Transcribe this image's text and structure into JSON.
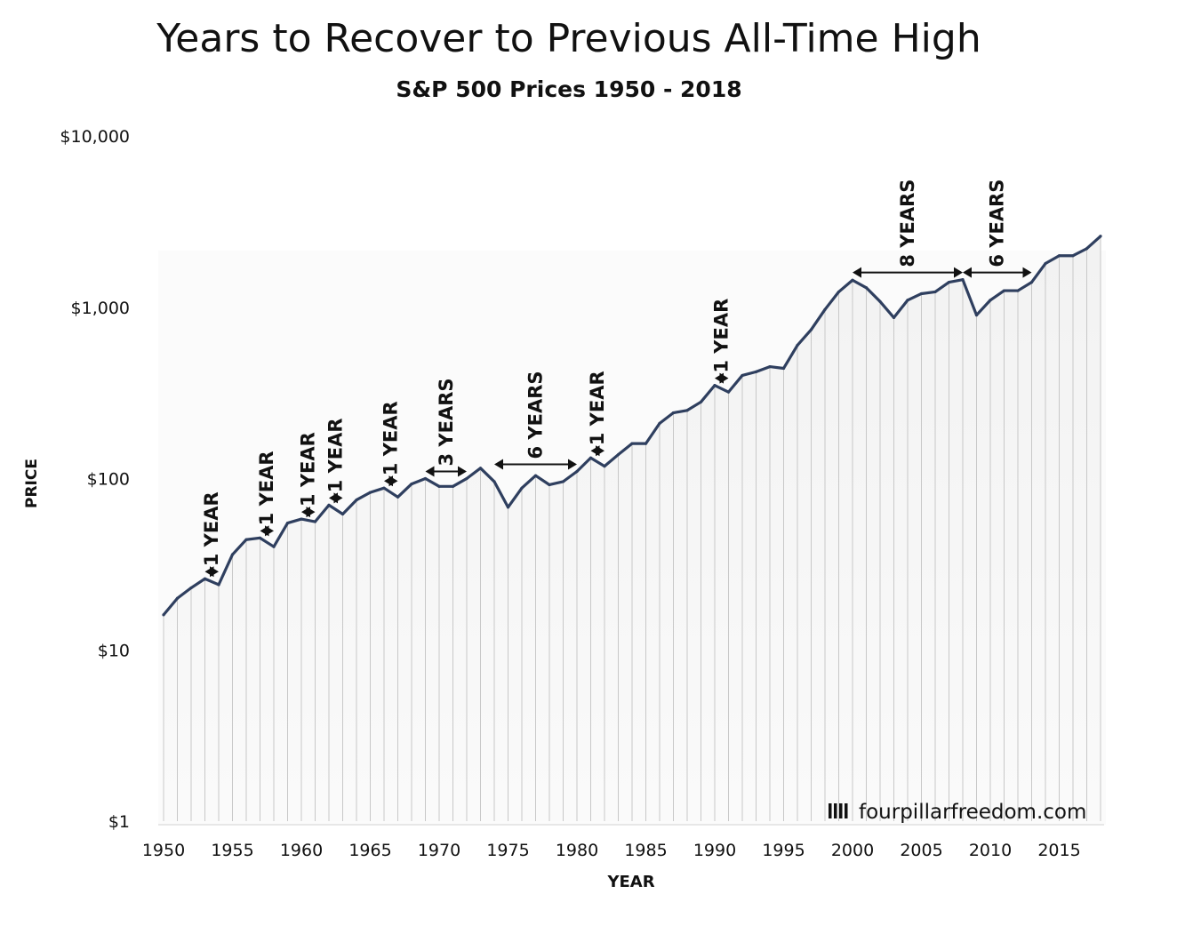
{
  "chart_data": {
    "type": "area",
    "title": "Years to Recover to Previous All-Time High",
    "subtitle": "S&P 500 Prices 1950 - 2018",
    "xlabel": "YEAR",
    "ylabel": "PRICE",
    "y_scale": "log",
    "ylim": [
      1,
      10000
    ],
    "xlim": [
      1950,
      2018
    ],
    "y_ticks": [
      "$1",
      "$10",
      "$100",
      "$1,000",
      "$10,000"
    ],
    "y_tick_values": [
      1,
      10,
      100,
      1000,
      10000
    ],
    "x_ticks": [
      1950,
      1955,
      1960,
      1965,
      1970,
      1975,
      1980,
      1985,
      1990,
      1995,
      2000,
      2005,
      2010,
      2015
    ],
    "grid": "vertical lines per year",
    "series": [
      {
        "color": "#2f3f5f",
        "x": [
          1950,
          1951,
          1952,
          1953,
          1954,
          1955,
          1956,
          1957,
          1958,
          1959,
          1960,
          1961,
          1962,
          1963,
          1964,
          1965,
          1966,
          1967,
          1968,
          1969,
          1970,
          1971,
          1972,
          1973,
          1974,
          1975,
          1976,
          1977,
          1978,
          1979,
          1980,
          1981,
          1982,
          1983,
          1984,
          1985,
          1986,
          1987,
          1988,
          1989,
          1990,
          1991,
          1992,
          1993,
          1994,
          1995,
          1996,
          1997,
          1998,
          1999,
          2000,
          2001,
          2002,
          2003,
          2004,
          2005,
          2006,
          2007,
          2008,
          2009,
          2010,
          2011,
          2012,
          2013,
          2014,
          2015,
          2016,
          2017,
          2018
        ],
        "values": [
          16,
          20,
          23,
          26,
          24,
          36,
          44,
          45,
          40,
          55,
          58,
          56,
          70,
          62,
          75,
          83,
          88,
          78,
          93,
          100,
          90,
          90,
          100,
          115,
          96,
          68,
          88,
          104,
          92,
          96,
          110,
          132,
          118,
          138,
          160,
          160,
          210,
          242,
          250,
          280,
          350,
          320,
          400,
          420,
          450,
          440,
          600,
          740,
          970,
          1230,
          1440,
          1300,
          1080,
          870,
          1100,
          1200,
          1230,
          1400,
          1450,
          900,
          1100,
          1250,
          1250,
          1400,
          1800,
          2000,
          2000,
          2200,
          2600
        ]
      }
    ],
    "annotations": [
      {
        "text": "1 YEAR",
        "from": 1953,
        "to": 1954
      },
      {
        "text": "1 YEAR",
        "from": 1957,
        "to": 1958
      },
      {
        "text": "1 YEAR",
        "from": 1960,
        "to": 1961
      },
      {
        "text": "1 YEAR",
        "from": 1962,
        "to": 1963
      },
      {
        "text": "1 YEAR",
        "from": 1966,
        "to": 1967
      },
      {
        "text": "3 YEARS",
        "from": 1969,
        "to": 1972
      },
      {
        "text": "6 YEARS",
        "from": 1974,
        "to": 1980
      },
      {
        "text": "1 YEAR",
        "from": 1981,
        "to": 1982
      },
      {
        "text": "1 YEAR",
        "from": 1990,
        "to": 1991
      },
      {
        "text": "8 YEARS",
        "from": 2000,
        "to": 2008
      },
      {
        "text": "6 YEARS",
        "from": 2008,
        "to": 2013
      }
    ],
    "credit": "fourpillarfreedom.com"
  }
}
